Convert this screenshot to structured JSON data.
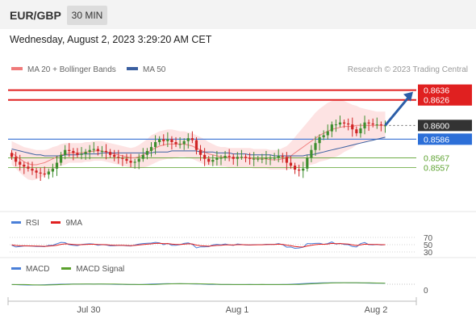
{
  "header": {
    "pair": "EUR/GBP",
    "interval": "30 MIN"
  },
  "datetime": "Wednesday, August 2, 2023 3:29:20 AM CET",
  "legend": {
    "bollinger": "MA 20 + Bollinger Bands",
    "ma50": "MA 50",
    "credit": "Research © 2023 Trading Central"
  },
  "colors": {
    "red": "#e02020",
    "blue": "#4a7fd8",
    "green": "#5aa02c",
    "bull": "#3e8e2e",
    "bear": "#d02525",
    "band": "#fde3e3",
    "dark_label": "#333333",
    "ma50": "#3a5fa0"
  },
  "chart_data": [
    {
      "type": "candlestick",
      "title": "EUR/GBP",
      "ylim": [
        0.8518,
        0.8648
      ],
      "xlabels": [
        "Jul 30",
        "Aug 1",
        "Aug 2"
      ],
      "levels": [
        {
          "label": "0.8636",
          "value": 0.8636,
          "kind": "resistance"
        },
        {
          "label": "0.8626",
          "value": 0.8626,
          "kind": "resistance"
        },
        {
          "label": "0.8600",
          "value": 0.86,
          "kind": "last"
        },
        {
          "label": "0.8586",
          "value": 0.8586,
          "kind": "pivot"
        },
        {
          "label": "0.8567",
          "value": 0.8567,
          "kind": "support"
        },
        {
          "label": "0.8557",
          "value": 0.8557,
          "kind": "support"
        }
      ],
      "closes": [
        0.8568,
        0.8563,
        0.856,
        0.8558,
        0.8556,
        0.8554,
        0.8552,
        0.8551,
        0.855,
        0.8553,
        0.8556,
        0.8562,
        0.857,
        0.8575,
        0.8574,
        0.8572,
        0.857,
        0.8571,
        0.8573,
        0.8575,
        0.8576,
        0.8574,
        0.8574,
        0.8573,
        0.857,
        0.8568,
        0.8567,
        0.8566,
        0.8564,
        0.8562,
        0.8563,
        0.8566,
        0.857,
        0.8574,
        0.8578,
        0.8583,
        0.8586,
        0.8584,
        0.8586,
        0.8583,
        0.8581,
        0.8581,
        0.8584,
        0.8587,
        0.8585,
        0.8575,
        0.857,
        0.8566,
        0.8563,
        0.8565,
        0.8567,
        0.8567,
        0.8569,
        0.8568,
        0.8566,
        0.8568,
        0.8568,
        0.8567,
        0.8566,
        0.8566,
        0.8566,
        0.8566,
        0.8567,
        0.8567,
        0.8567,
        0.8569,
        0.8568,
        0.8562,
        0.8559,
        0.8555,
        0.8554,
        0.8556,
        0.8567,
        0.8575,
        0.8582,
        0.8588,
        0.859,
        0.8594,
        0.8601,
        0.8601,
        0.8603,
        0.8602,
        0.8601,
        0.8596,
        0.8592,
        0.8597,
        0.8603,
        0.8602,
        0.8601,
        0.8601,
        0.86,
        0.86
      ],
      "ma20": [
        0.8572,
        0.8569,
        0.8566,
        0.8563,
        0.8561,
        0.856,
        0.856,
        0.8561,
        0.8562,
        0.8564,
        0.8566,
        0.8568,
        0.857,
        0.8571,
        0.8572,
        0.8572,
        0.8572,
        0.8572,
        0.8573,
        0.8573,
        0.8574,
        0.8574,
        0.8574,
        0.8573,
        0.8572,
        0.8571,
        0.857,
        0.8569,
        0.8568,
        0.8567,
        0.8567,
        0.8568,
        0.857,
        0.8572,
        0.8575,
        0.8577,
        0.8579,
        0.858,
        0.8581,
        0.8581,
        0.8581,
        0.8581,
        0.8581,
        0.858,
        0.8579,
        0.8577,
        0.8575,
        0.8573,
        0.8571,
        0.857,
        0.8569,
        0.8568,
        0.8568,
        0.8567,
        0.8567,
        0.8567,
        0.8567,
        0.8567,
        0.8567,
        0.8566,
        0.8566,
        0.8566,
        0.8566,
        0.8565,
        0.8565,
        0.8565,
        0.8566,
        0.8567,
        0.8569,
        0.8572,
        0.8575,
        0.8578,
        0.8581,
        0.8584,
        0.8587,
        0.859,
        0.8592,
        0.8594,
        0.8596,
        0.8597,
        0.8598,
        0.8599,
        0.8599,
        0.8599,
        0.86,
        0.86,
        0.86,
        0.86,
        0.86,
        0.86,
        0.86,
        0.86
      ],
      "band_width": [
        0.0012,
        0.0013,
        0.0014,
        0.0015,
        0.0016,
        0.0016,
        0.0015,
        0.0014,
        0.0013,
        0.0012,
        0.0012,
        0.0011,
        0.0011,
        0.0011,
        0.001,
        0.001,
        0.001,
        0.001,
        0.001,
        0.001,
        0.001,
        0.001,
        0.001,
        0.001,
        0.001,
        0.001,
        0.001,
        0.001,
        0.001,
        0.001,
        0.0011,
        0.0012,
        0.0013,
        0.0014,
        0.0015,
        0.0015,
        0.0015,
        0.0015,
        0.0015,
        0.0015,
        0.0014,
        0.0013,
        0.0013,
        0.0013,
        0.0013,
        0.0013,
        0.0013,
        0.0013,
        0.0012,
        0.0011,
        0.001,
        0.001,
        0.001,
        0.001,
        0.001,
        0.001,
        0.001,
        0.001,
        0.001,
        0.001,
        0.001,
        0.001,
        0.001,
        0.001,
        0.001,
        0.001,
        0.0011,
        0.0012,
        0.0014,
        0.0016,
        0.0018,
        0.002,
        0.0022,
        0.0024,
        0.0026,
        0.0027,
        0.0028,
        0.0029,
        0.0029,
        0.0029,
        0.0028,
        0.0026,
        0.0024,
        0.0022,
        0.002,
        0.0018,
        0.0017,
        0.0016,
        0.0015,
        0.0014,
        0.0014,
        0.0014
      ],
      "ma50": [
        0.8576,
        0.8575,
        0.8574,
        0.8573,
        0.8572,
        0.8571,
        0.857,
        0.857,
        0.8569,
        0.8569,
        0.8569,
        0.8569,
        0.8569,
        0.857,
        0.857,
        0.857,
        0.857,
        0.8571,
        0.8571,
        0.8571,
        0.8571,
        0.8571,
        0.8572,
        0.8572,
        0.8572,
        0.8572,
        0.8572,
        0.8572,
        0.8572,
        0.8572,
        0.8572,
        0.8572,
        0.8572,
        0.8572,
        0.8572,
        0.8573,
        0.8573,
        0.8573,
        0.8573,
        0.8574,
        0.8574,
        0.8574,
        0.8574,
        0.8574,
        0.8574,
        0.8574,
        0.8573,
        0.8573,
        0.8573,
        0.8573,
        0.8572,
        0.8572,
        0.8572,
        0.8572,
        0.8571,
        0.8571,
        0.8571,
        0.8571,
        0.857,
        0.857,
        0.857,
        0.857,
        0.857,
        0.857,
        0.8569,
        0.8569,
        0.8569,
        0.8569,
        0.8569,
        0.8569,
        0.8569,
        0.8569,
        0.857,
        0.857,
        0.8571,
        0.8572,
        0.8573,
        0.8574,
        0.8575,
        0.8576,
        0.8577,
        0.8578,
        0.8579,
        0.858,
        0.8581,
        0.8582,
        0.8583,
        0.8584,
        0.8585,
        0.8586,
        0.8587,
        0.8588
      ],
      "forecast": {
        "from": 0.86,
        "to": 0.8636
      }
    },
    {
      "type": "line",
      "title": "RSI",
      "series": [
        {
          "name": "RSI"
        },
        {
          "name": "9MA"
        }
      ],
      "ylim": [
        30,
        70
      ],
      "ticks": [
        "70",
        "50",
        "30"
      ]
    },
    {
      "type": "line",
      "title": "MACD",
      "series": [
        {
          "name": "MACD"
        },
        {
          "name": "MACD Signal"
        }
      ],
      "ticks": [
        "0"
      ]
    }
  ]
}
